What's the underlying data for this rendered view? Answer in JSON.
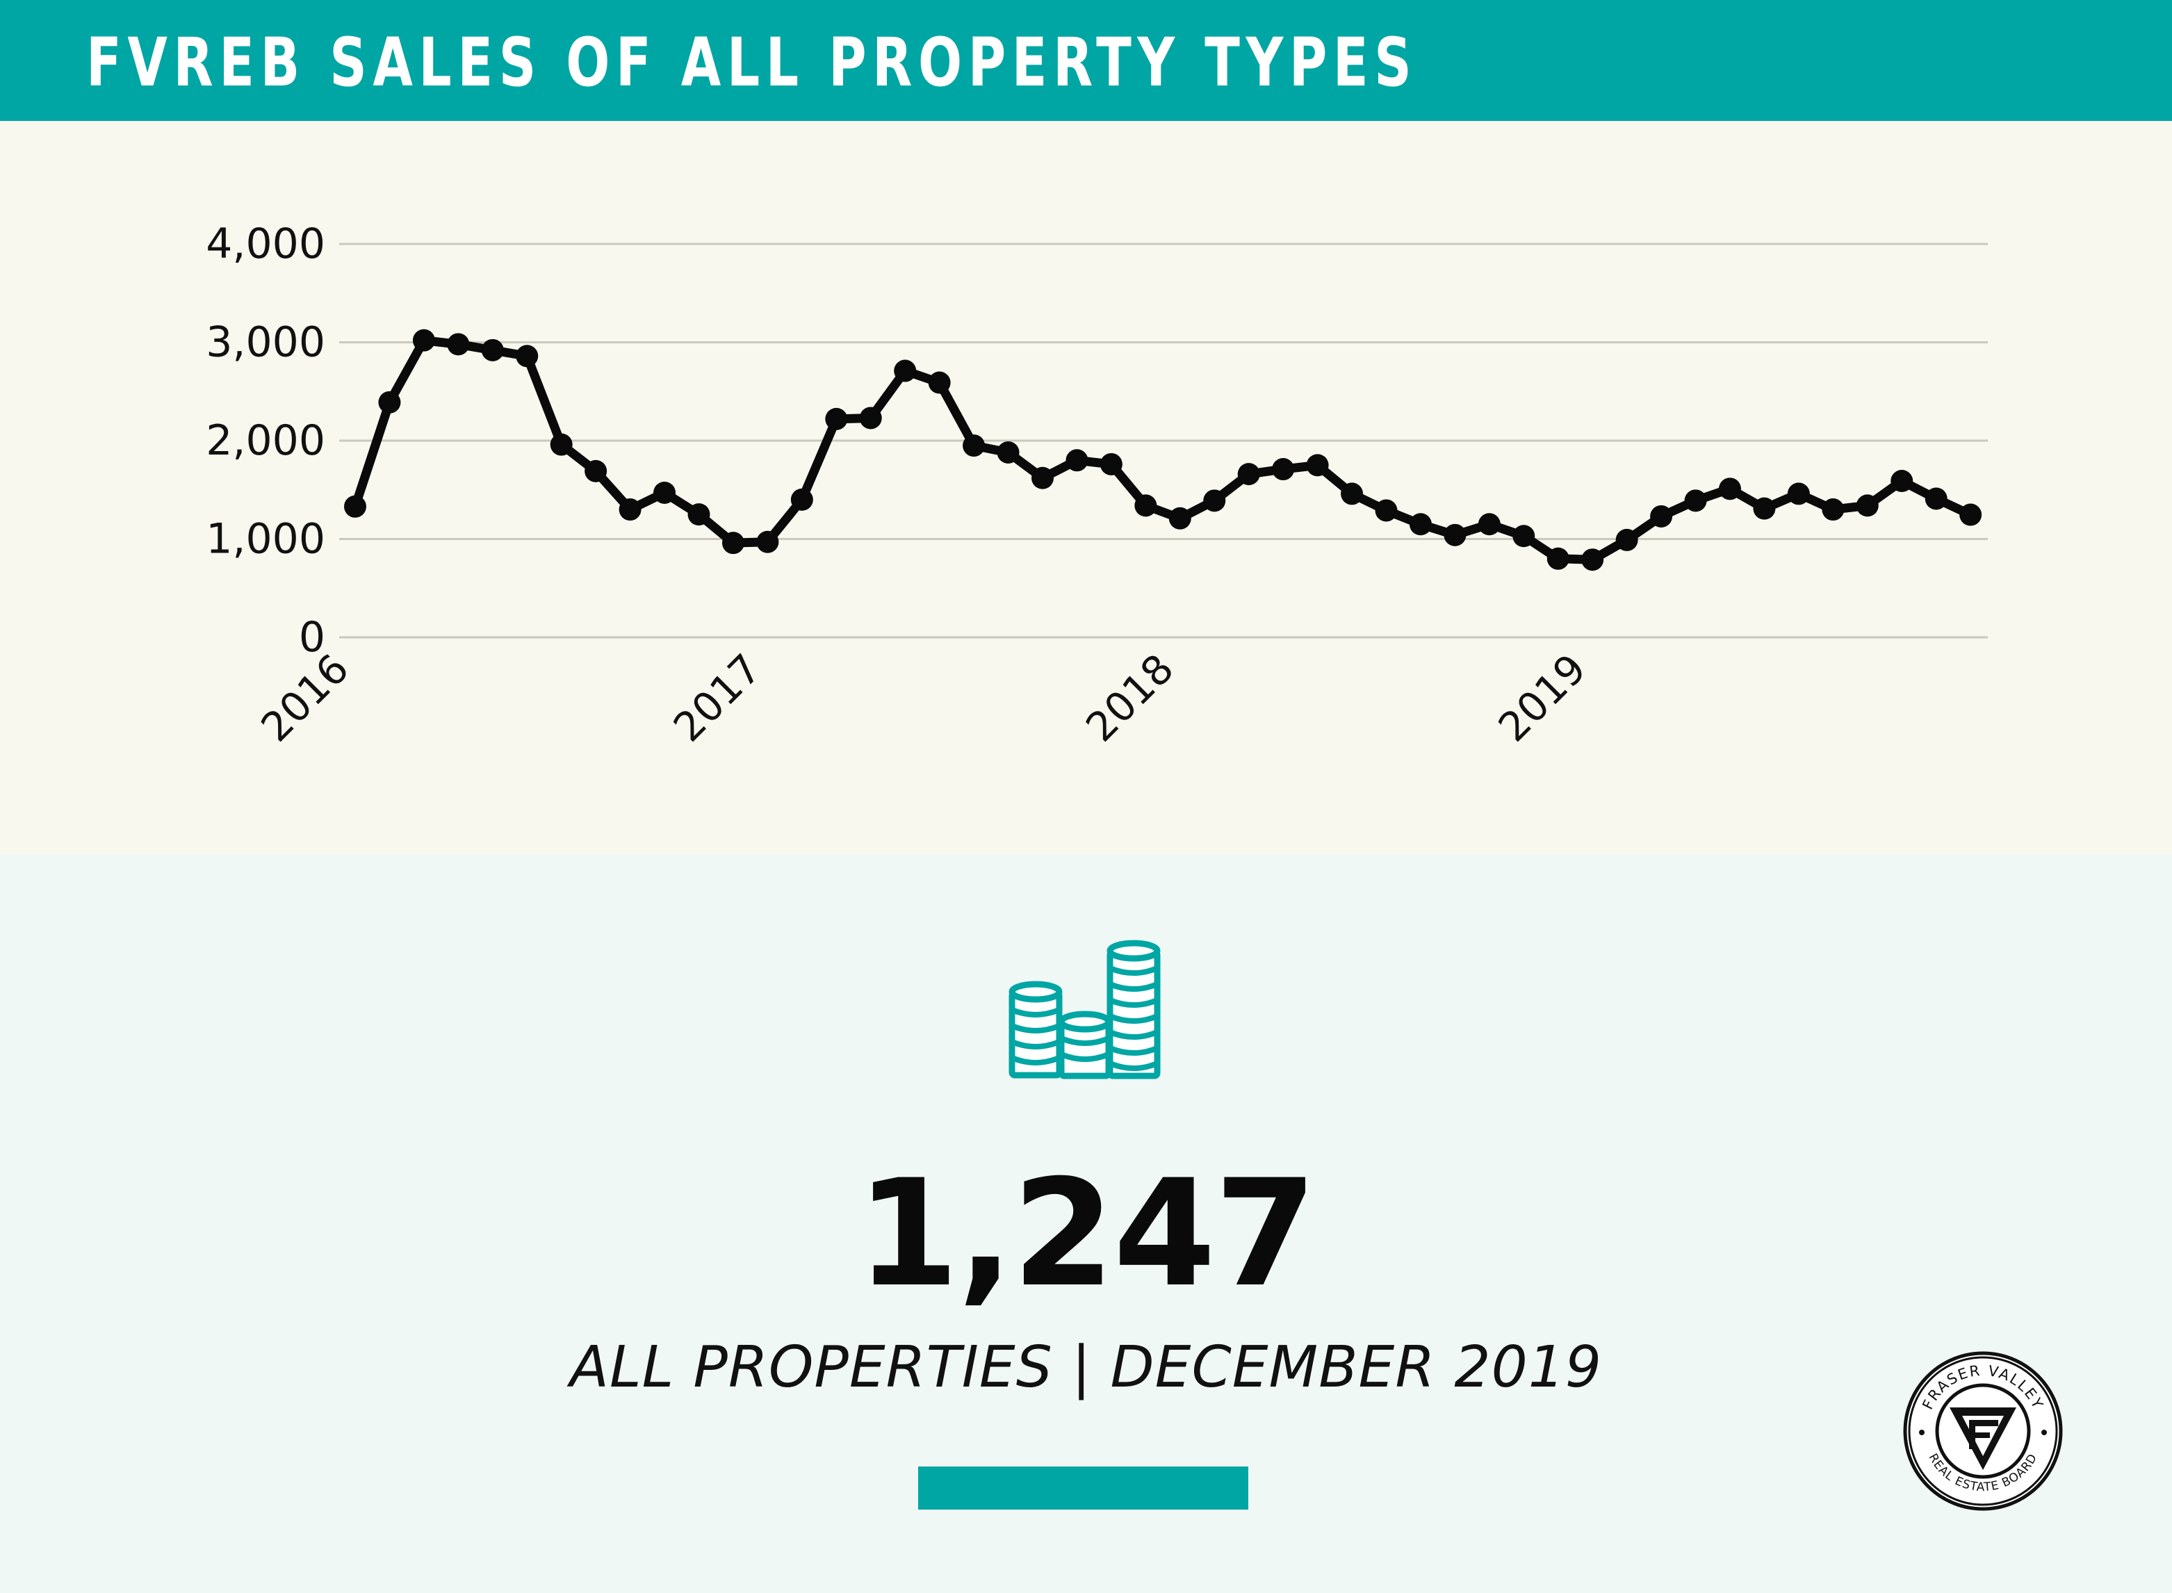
{
  "header": {
    "title": "FVREB SALES OF ALL PROPERTY TYPES"
  },
  "chart_data": {
    "type": "line",
    "title": "",
    "xlabel": "",
    "ylabel": "",
    "ylim": [
      0,
      4000
    ],
    "yticks": [
      "0",
      "1,000",
      "2,000",
      "3,000",
      "4,000"
    ],
    "xticks": [
      "2016",
      "2017",
      "2018",
      "2019"
    ],
    "grid": true,
    "series": [
      {
        "x": [
          "2016-01",
          "2016-02",
          "2016-03",
          "2016-04",
          "2016-05",
          "2016-06",
          "2016-07",
          "2016-08",
          "2016-09",
          "2016-10",
          "2016-11",
          "2016-12",
          "2017-01",
          "2017-02",
          "2017-03",
          "2017-04",
          "2017-05",
          "2017-06",
          "2017-07",
          "2017-08",
          "2017-09",
          "2017-10",
          "2017-11",
          "2017-12",
          "2018-01",
          "2018-02",
          "2018-03",
          "2018-04",
          "2018-05",
          "2018-06",
          "2018-07",
          "2018-08",
          "2018-09",
          "2018-10",
          "2018-11",
          "2018-12",
          "2019-01",
          "2019-02",
          "2019-03",
          "2019-04",
          "2019-05",
          "2019-06",
          "2019-07",
          "2019-08",
          "2019-09",
          "2019-10",
          "2019-11",
          "2019-12"
        ],
        "values": [
          1330,
          2390,
          3020,
          2980,
          2920,
          2860,
          1960,
          1690,
          1300,
          1470,
          1250,
          960,
          970,
          1400,
          2220,
          2230,
          2710,
          2590,
          1950,
          1880,
          1620,
          1800,
          1760,
          1340,
          1210,
          1390,
          1660,
          1710,
          1750,
          1460,
          1290,
          1150,
          1040,
          1150,
          1030,
          800,
          790,
          990,
          1230,
          1390,
          1510,
          1310,
          1460,
          1300,
          1340,
          1590,
          1410,
          1247
        ]
      }
    ]
  },
  "stats": {
    "icon": "coins-stack-icon",
    "value": "1,247",
    "caption": "ALL PROPERTIES | DECEMBER 2019"
  },
  "logo": {
    "text_top": "FRASER VALLEY",
    "text_bottom": "REAL ESTATE BOARD",
    "monogram": "FV"
  },
  "colors": {
    "accent": "#00a6a4",
    "chart_bg": "#f8f8ef",
    "stats_bg": "#f0f8f6",
    "line": "#0a0a0a"
  }
}
